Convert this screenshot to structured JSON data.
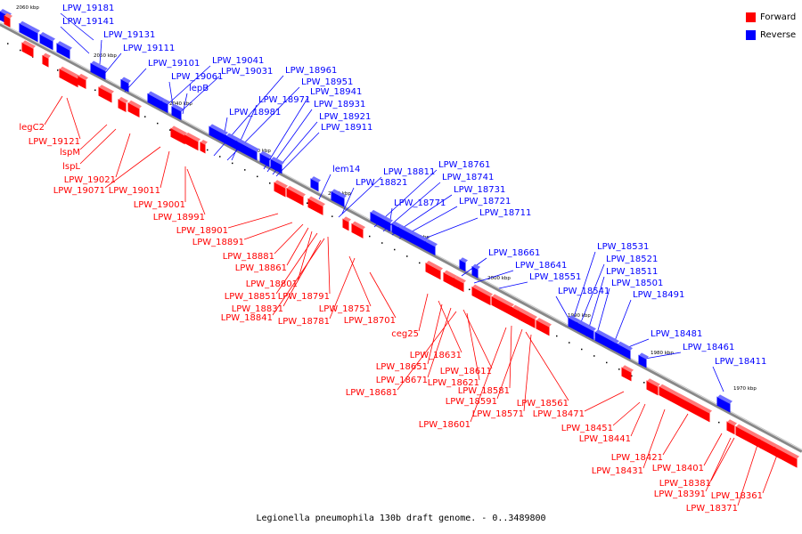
{
  "caption": "Legionella pneumophila 130b draft genome. - 0..3489800",
  "legend": [
    {
      "label": "Forward",
      "color": "#ff0000"
    },
    {
      "label": "Reverse",
      "color": "#0000ff"
    }
  ],
  "ticks": [
    "2060 kbp",
    "2050 kbp",
    "2040 kbp",
    "2030 kbp",
    "2020 kbp",
    "2010 kbp",
    "2000 kbp",
    "1990 kbp",
    "1980 kbp",
    "1970 kbp"
  ],
  "labels": {
    "reverse": [
      "LPW_19181",
      "LPW_19141",
      "LPW_19131",
      "LPW_19111",
      "LPW_19101",
      "LPW_19041",
      "LPW_19061",
      "LPW_19031",
      "lepB",
      "LPW_18961",
      "LPW_18951",
      "LPW_18971",
      "LPW_18941",
      "LPW_18981",
      "LPW_18931",
      "LPW_18921",
      "LPW_18911",
      "lem14",
      "LPW_18811",
      "LPW_18761",
      "LPW_18821",
      "LPW_18741",
      "LPW_18731",
      "LPW_18771",
      "LPW_18721",
      "LPW_18711",
      "LPW_18661",
      "LPW_18641",
      "LPW_18551",
      "LPW_18531",
      "LPW_18521",
      "LPW_18511",
      "LPW_18501",
      "LPW_18541",
      "LPW_18491",
      "LPW_18481",
      "LPW_18461",
      "LPW_18411"
    ],
    "forward": [
      "legC2",
      "LPW_19121",
      "lspM",
      "lspL",
      "LPW_19021",
      "LPW_19071",
      "LPW_19011",
      "LPW_19001",
      "LPW_18991",
      "LPW_18901",
      "LPW_18891",
      "LPW_18881",
      "LPW_18861",
      "LPW_18801",
      "LPW_18851",
      "LPW_18791",
      "LPW_18831",
      "LPW_18841",
      "LPW_18751",
      "LPW_18781",
      "LPW_18701",
      "ceg25",
      "LPW_18631",
      "LPW_18651",
      "LPW_18611",
      "LPW_18671",
      "LPW_18621",
      "LPW_18681",
      "LPW_18581",
      "LPW_18591",
      "LPW_18561",
      "LPW_18571",
      "LPW_18471",
      "LPW_18601",
      "LPW_18451",
      "LPW_18441",
      "LPW_18421",
      "LPW_18431",
      "LPW_18401",
      "LPW_18381",
      "LPW_18391",
      "LPW_18361",
      "LPW_18371"
    ]
  }
}
